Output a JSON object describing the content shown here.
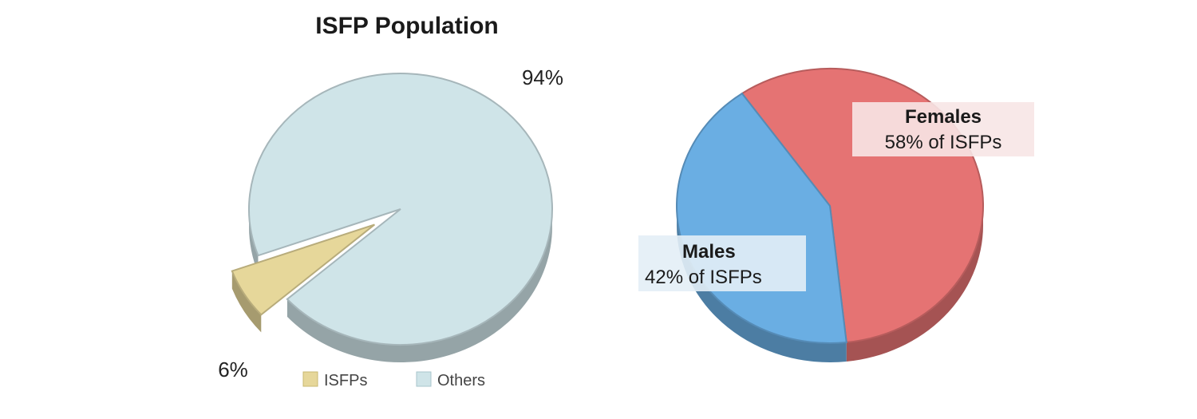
{
  "chart_data": [
    {
      "type": "pie",
      "title": "ISFP Population",
      "categories": [
        "ISFPs",
        "Others"
      ],
      "values": [
        6,
        94
      ],
      "value_labels": [
        "6%",
        "94%"
      ],
      "legend": [
        "ISFPs",
        "Others"
      ],
      "legend_placement": "bottom",
      "colors": [
        "#e6d79a",
        "#cfe4e8"
      ],
      "exploded": "ISFPs",
      "style": "3d"
    },
    {
      "type": "pie",
      "title": "",
      "categories": [
        "Females",
        "Males"
      ],
      "values": [
        58,
        42
      ],
      "value_labels": [
        "58% of ISFPs",
        "42% of ISFPs"
      ],
      "colors": [
        "#e57373",
        "#6aaee3"
      ],
      "style": "3d"
    }
  ]
}
